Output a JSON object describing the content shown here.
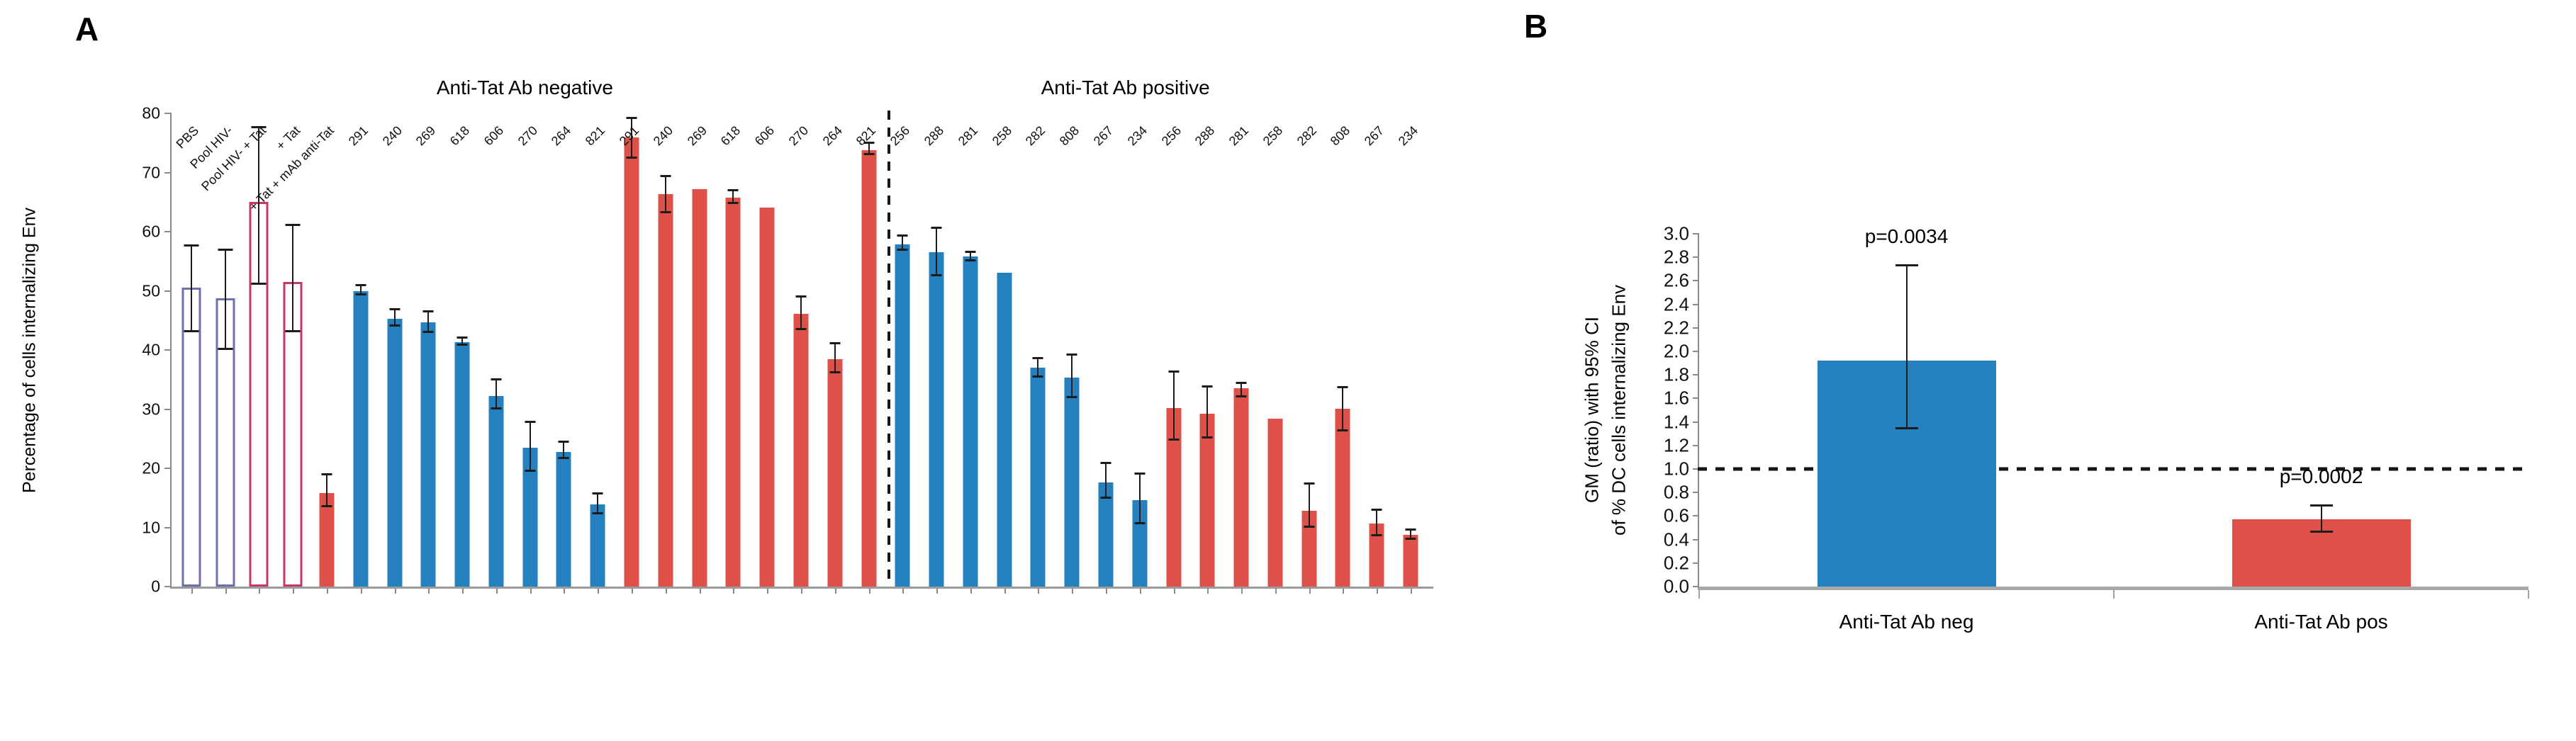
{
  "figure": {
    "panel_a_label": "A",
    "panel_b_label": "B"
  },
  "colors": {
    "solid_blue": "#2580BF",
    "solid_red": "#DE5149",
    "open_blue_border": "#6F6FAE",
    "open_red_border": "#C5376B",
    "open_fill": "#FFFFFF",
    "axis": "#8a8a8a",
    "error_bar": "#1c1c1c",
    "dashed_line": "#161616"
  },
  "chart_data": [
    {
      "id": "panel_A",
      "type": "bar",
      "ylabel": "Percentage of cells internalizing Env",
      "ylim": [
        0,
        80
      ],
      "yticks": [
        "0",
        "10",
        "20",
        "30",
        "40",
        "50",
        "60",
        "70",
        "80"
      ],
      "grid": false,
      "group_titles": [
        {
          "label": "Anti-Tat Ab negative",
          "center_pct": 28.0
        },
        {
          "label": "Anti-Tat Ab positive",
          "center_pct": 75.6
        }
      ],
      "separator_after_index": 20,
      "bars": [
        {
          "label": "PBS",
          "value": 50.5,
          "lo": 43.0,
          "hi": 57.5,
          "style": "open_blue",
          "group": "controls"
        },
        {
          "label": "Pool HIV-",
          "value": 48.8,
          "lo": 40.0,
          "hi": 56.8,
          "style": "open_blue",
          "group": "controls"
        },
        {
          "label": "Pool HIV- + Tat",
          "value": 65.0,
          "lo": 51.0,
          "hi": 77.5,
          "style": "open_red",
          "group": "controls"
        },
        {
          "label": "+ Tat",
          "value": 51.5,
          "lo": 43.0,
          "hi": 61.0,
          "style": "open_red",
          "group": "controls"
        },
        {
          "label": "+ Tat + mAb anti-Tat",
          "value": 15.8,
          "lo": 13.4,
          "hi": 18.8,
          "style": "solid_red",
          "group": "controls"
        },
        {
          "label": "291",
          "value": 50.0,
          "lo": 49.2,
          "hi": 50.8,
          "style": "solid_blue",
          "group": "anti-Tat Ab negative / Env"
        },
        {
          "label": "240",
          "value": 45.3,
          "lo": 43.9,
          "hi": 46.7,
          "style": "solid_blue",
          "group": "anti-Tat Ab negative / Env"
        },
        {
          "label": "269",
          "value": 44.7,
          "lo": 42.9,
          "hi": 46.4,
          "style": "solid_blue",
          "group": "anti-Tat Ab negative / Env"
        },
        {
          "label": "618",
          "value": 41.3,
          "lo": 40.7,
          "hi": 41.9,
          "style": "solid_blue",
          "group": "anti-Tat Ab negative / Env"
        },
        {
          "label": "606",
          "value": 32.2,
          "lo": 29.9,
          "hi": 34.8,
          "style": "solid_blue",
          "group": "anti-Tat Ab negative / Env"
        },
        {
          "label": "270",
          "value": 23.5,
          "lo": 19.4,
          "hi": 27.7,
          "style": "solid_blue",
          "group": "anti-Tat Ab negative / Env"
        },
        {
          "label": "264",
          "value": 22.7,
          "lo": 21.5,
          "hi": 24.3,
          "style": "solid_blue",
          "group": "anti-Tat Ab negative / Env"
        },
        {
          "label": "821",
          "value": 13.9,
          "lo": 12.2,
          "hi": 15.6,
          "style": "solid_blue",
          "group": "anti-Tat Ab negative / Env"
        },
        {
          "label": "291",
          "value": 75.9,
          "lo": 72.3,
          "hi": 79.0,
          "style": "solid_red",
          "group": "anti-Tat Ab negative / Env+Tat"
        },
        {
          "label": "240",
          "value": 66.4,
          "lo": 63.1,
          "hi": 69.2,
          "style": "solid_red",
          "group": "anti-Tat Ab negative / Env+Tat"
        },
        {
          "label": "269",
          "value": 67.2,
          "lo": 67.2,
          "hi": 67.2,
          "style": "solid_red",
          "group": "anti-Tat Ab negative / Env+Tat"
        },
        {
          "label": "618",
          "value": 65.8,
          "lo": 64.7,
          "hi": 66.8,
          "style": "solid_red",
          "group": "anti-Tat Ab negative / Env+Tat"
        },
        {
          "label": "606",
          "value": 64.1,
          "lo": 64.1,
          "hi": 64.1,
          "style": "solid_red",
          "group": "anti-Tat Ab negative / Env+Tat"
        },
        {
          "label": "270",
          "value": 46.1,
          "lo": 43.3,
          "hi": 48.9,
          "style": "solid_red",
          "group": "anti-Tat Ab negative / Env+Tat"
        },
        {
          "label": "264",
          "value": 38.4,
          "lo": 36.1,
          "hi": 41.0,
          "style": "solid_red",
          "group": "anti-Tat Ab negative / Env+Tat"
        },
        {
          "label": "821",
          "value": 73.8,
          "lo": 72.9,
          "hi": 74.9,
          "style": "solid_red",
          "group": "anti-Tat Ab negative / Env+Tat"
        },
        {
          "label": "256",
          "value": 57.8,
          "lo": 56.8,
          "hi": 59.2,
          "style": "solid_blue",
          "group": "anti-Tat Ab positive / Env"
        },
        {
          "label": "288",
          "value": 56.5,
          "lo": 52.5,
          "hi": 60.5,
          "style": "solid_blue",
          "group": "anti-Tat Ab positive / Env"
        },
        {
          "label": "281",
          "value": 55.8,
          "lo": 55.0,
          "hi": 56.4,
          "style": "solid_blue",
          "group": "anti-Tat Ab positive / Env"
        },
        {
          "label": "258",
          "value": 53.0,
          "lo": 53.0,
          "hi": 53.0,
          "style": "solid_blue",
          "group": "anti-Tat Ab positive / Env"
        },
        {
          "label": "282",
          "value": 37.0,
          "lo": 35.3,
          "hi": 38.4,
          "style": "solid_blue",
          "group": "anti-Tat Ab positive / Env"
        },
        {
          "label": "808",
          "value": 35.3,
          "lo": 31.8,
          "hi": 39.1,
          "style": "solid_blue",
          "group": "anti-Tat Ab positive / Env"
        },
        {
          "label": "267",
          "value": 17.6,
          "lo": 14.9,
          "hi": 20.7,
          "style": "solid_blue",
          "group": "anti-Tat Ab positive / Env"
        },
        {
          "label": "234",
          "value": 14.6,
          "lo": 10.5,
          "hi": 18.9,
          "style": "solid_blue",
          "group": "anti-Tat Ab positive / Env"
        },
        {
          "label": "256",
          "value": 30.2,
          "lo": 24.7,
          "hi": 36.2,
          "style": "solid_red",
          "group": "anti-Tat Ab positive / Env+Tat"
        },
        {
          "label": "288",
          "value": 29.2,
          "lo": 25.0,
          "hi": 33.7,
          "style": "solid_red",
          "group": "anti-Tat Ab positive / Env+Tat"
        },
        {
          "label": "281",
          "value": 33.5,
          "lo": 32.0,
          "hi": 34.3,
          "style": "solid_red",
          "group": "anti-Tat Ab positive / Env+Tat"
        },
        {
          "label": "258",
          "value": 28.4,
          "lo": 28.4,
          "hi": 28.4,
          "style": "solid_red",
          "group": "anti-Tat Ab positive / Env+Tat"
        },
        {
          "label": "282",
          "value": 12.8,
          "lo": 10.0,
          "hi": 17.3,
          "style": "solid_red",
          "group": "anti-Tat Ab positive / Env+Tat"
        },
        {
          "label": "808",
          "value": 30.1,
          "lo": 26.2,
          "hi": 33.5,
          "style": "solid_red",
          "group": "anti-Tat Ab positive / Env+Tat"
        },
        {
          "label": "267",
          "value": 10.7,
          "lo": 8.5,
          "hi": 12.8,
          "style": "solid_red",
          "group": "anti-Tat Ab positive / Env+Tat"
        },
        {
          "label": "234",
          "value": 8.8,
          "lo": 7.9,
          "hi": 9.5,
          "style": "solid_red",
          "group": "anti-Tat Ab positive / Env+Tat"
        }
      ]
    },
    {
      "id": "panel_B",
      "type": "bar",
      "ylabel_line1": "GM (ratio) with 95% CI",
      "ylabel_line2": "of % DC cells internalizing Env",
      "ylim": [
        0,
        3.0
      ],
      "yticks": [
        "0.0",
        "0.2",
        "0.4",
        "0.6",
        "0.8",
        "1.0",
        "1.2",
        "1.4",
        "1.6",
        "1.8",
        "2.0",
        "2.2",
        "2.4",
        "2.6",
        "2.8",
        "3.0"
      ],
      "reference_line": 1.0,
      "grid": false,
      "bars": [
        {
          "label": "Anti-Tat Ab neg",
          "value": 1.92,
          "lo": 1.34,
          "hi": 2.72,
          "p_label": "p=0.0034",
          "style": "solid_blue"
        },
        {
          "label": "Anti-Tat Ab pos",
          "value": 0.57,
          "lo": 0.46,
          "hi": 0.68,
          "p_label": "p=0.0002",
          "style": "solid_red"
        }
      ]
    }
  ]
}
